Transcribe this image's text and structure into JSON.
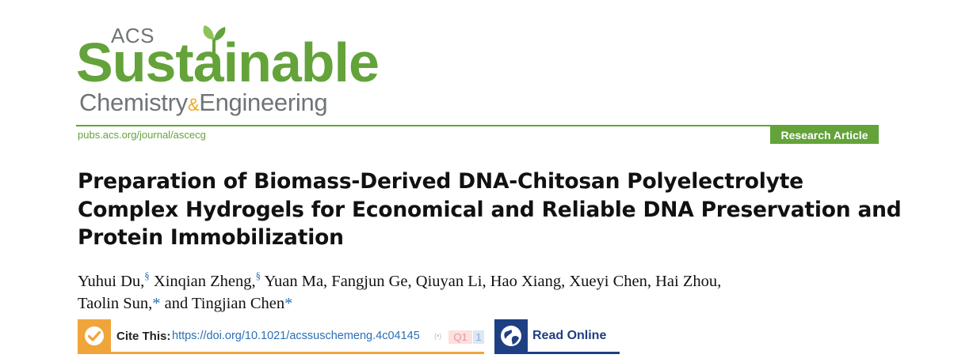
{
  "logo": {
    "acs": "ACS",
    "sustainable": "Sustainable",
    "chemistry": "Chemistry",
    "amp": "&",
    "engineering": "Engineering"
  },
  "header": {
    "journal_url": "pubs.acs.org/journal/ascecg",
    "article_type": "Research Article"
  },
  "article": {
    "title": "Preparation of Biomass-Derived DNA-Chitosan Polyelectrolyte Complex Hydrogels for Economical and Reliable DNA Preservation and Protein Immobilization",
    "authors": [
      {
        "name": "Yuhui Du",
        "mark": "§",
        "sep": ", "
      },
      {
        "name": "Xinqian Zheng",
        "mark": "§",
        "sep": " "
      },
      {
        "name": "Yuan Ma, Fangjun Ge, Qiuyan Li, Hao Xiang, Xueyi Chen, Hai Zhou,",
        "mark": "",
        "sep": " "
      },
      {
        "name": "Taolin Sun,",
        "mark": "*",
        "sep": " and "
      },
      {
        "name": "Tingjian Chen",
        "mark": "*",
        "sep": ""
      }
    ]
  },
  "actions": {
    "cite_label": "Cite This:",
    "cite_doi": "https://doi.org/10.1021/acssuschemeng.4c04145",
    "rss_mark": "(•)",
    "q_badge": "Q1",
    "n_badge": "1",
    "read_label": "Read Online"
  },
  "colors": {
    "brand_green": "#63a33a",
    "brand_gray": "#6f7476",
    "cite_orange": "#f0a53a",
    "read_navy": "#1e3f83",
    "link_blue": "#2a6fb6"
  },
  "icons": {
    "cite": "checkmark-circle-icon",
    "read": "globe-icon",
    "leaf": "leaf-sprout-icon"
  }
}
